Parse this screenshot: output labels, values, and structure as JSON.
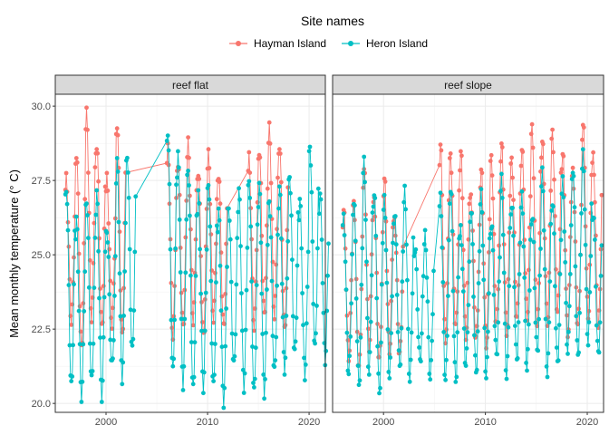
{
  "chart_data": {
    "type": "line",
    "ylabel": "Mean monthly temperature (° C)",
    "xlabel": "",
    "legend": {
      "title": "Site names",
      "placement": "top",
      "entries": [
        "Hayman Island",
        "Heron Island"
      ]
    },
    "colors": {
      "Hayman Island": "#F8766D",
      "Heron Island": "#00BFC4"
    },
    "grid": true,
    "xlim": [
      1995.0,
      2021.6
    ],
    "ylim": [
      19.7,
      30.4
    ],
    "x_ticks": [
      2000,
      2010,
      2020
    ],
    "y_ticks": [
      20.0,
      22.5,
      25.0,
      27.5,
      30.0
    ],
    "y_tick_labels": [
      "20.0",
      "22.5",
      "25.0",
      "27.5",
      "30.0"
    ],
    "panels": [
      {
        "strip": "reef flat",
        "series": [
          {
            "name": "Hayman Island",
            "segments": [
              {
                "start": 1996.0,
                "mins": [
                  22.8,
                  21.8,
                  22.9,
                  22.5,
                  22.7,
                  22.2
                ],
                "maxs": [
                  27.5,
                  28.5,
                  29.7,
                  28.8,
                  27.5,
                  29.5
                ]
              },
              {
                "start": 2006.0,
                "mins": [
                  22.3,
                  22.5,
                  22.8,
                  22.2,
                  22.9,
                  22.5
                ],
                "maxs": [
                  28.5,
                  28.2,
                  28.7,
                  27.9,
                  28.3,
                  27.8
                ]
              },
              {
                "start": 2014.0,
                "mins": [
                  22.6,
                  22.9,
                  23.0,
                  22.4
                ],
                "maxs": [
                  28.2,
                  28.6,
                  29.2,
                  28.8
                ]
              }
            ]
          },
          {
            "name": "Heron Island",
            "segments": [
              {
                "start": 1996.0,
                "mins": [
                  20.5,
                  20.3,
                  20.7,
                  20.3,
                  21.2,
                  20.9,
                  21.7
                ],
                "maxs": [
                  27.3,
                  26.1,
                  26.9,
                  27.0,
                  25.9,
                  28.1,
                  28.4
                ]
              },
              {
                "start": 2006.0,
                "mins": [
                  21.0,
                  20.7,
                  20.4,
                  20.6,
                  20.5,
                  20.1,
                  21.2,
                  20.6,
                  20.3,
                  20.4,
                  21.0,
                  21.2,
                  21.6,
                  21.0,
                  21.8,
                  21.5
                ],
                "maxs": [
                  29.2,
                  28.3,
                  28.0,
                  27.0,
                  27.5,
                  26.4,
                  26.7,
                  27.1,
                  27.6,
                  27.3,
                  26.9,
                  27.2,
                  27.7,
                  26.8,
                  28.7,
                  27.0
                ]
              }
            ]
          }
        ]
      },
      {
        "strip": "reef slope",
        "series": [
          {
            "name": "Hayman Island",
            "segments": [
              {
                "start": 1996.0,
                "mins": [
                  21.6,
                  21.1,
                  21.9,
                  21.4,
                  21.8,
                  21.6
                ],
                "maxs": [
                  26.5,
                  26.8,
                  27.9,
                  26.9,
                  27.6,
                  26.2
                ]
              },
              {
                "start": 2005.5,
                "mins": [
                  22.2,
                  22.5,
                  22.3,
                  22.1,
                  22.0,
                  22.6,
                  22.4,
                  22.8,
                  22.9,
                  22.5,
                  22.7,
                  23.0,
                  22.3,
                  22.6,
                  22.9,
                  22.5
                ],
                "maxs": [
                  28.7,
                  28.4,
                  28.5,
                  27.0,
                  27.9,
                  28.3,
                  28.8,
                  28.2,
                  28.6,
                  29.3,
                  28.9,
                  29.1,
                  28.5,
                  27.8,
                  29.5,
                  28.3
                ]
              }
            ]
          },
          {
            "name": "Heron Island",
            "segments": [
              {
                "start": 1996.0,
                "mins": [
                  21.0,
                  20.6,
                  21.0,
                  20.3,
                  20.9,
                  21.2,
                  20.8,
                  21.4,
                  20.9
                ],
                "maxs": [
                  26.2,
                  26.9,
                  28.1,
                  27.2,
                  26.8,
                  26.5,
                  27.1,
                  25.3,
                  25.6
                ]
              },
              {
                "start": 2005.5,
                "mins": [
                  20.8,
                  20.7,
                  21.3,
                  21.0,
                  20.9,
                  21.6,
                  20.9,
                  21.4,
                  21.2,
                  21.7,
                  21.0,
                  21.3,
                  21.8,
                  21.5,
                  22.1,
                  21.6
                ],
                "maxs": [
                  26.9,
                  27.3,
                  25.8,
                  26.6,
                  27.0,
                  26.1,
                  27.5,
                  26.8,
                  26.9,
                  26.4,
                  27.7,
                  26.9,
                  27.4,
                  28.0,
                  28.3,
                  26.5
                ]
              }
            ]
          }
        ]
      }
    ]
  }
}
